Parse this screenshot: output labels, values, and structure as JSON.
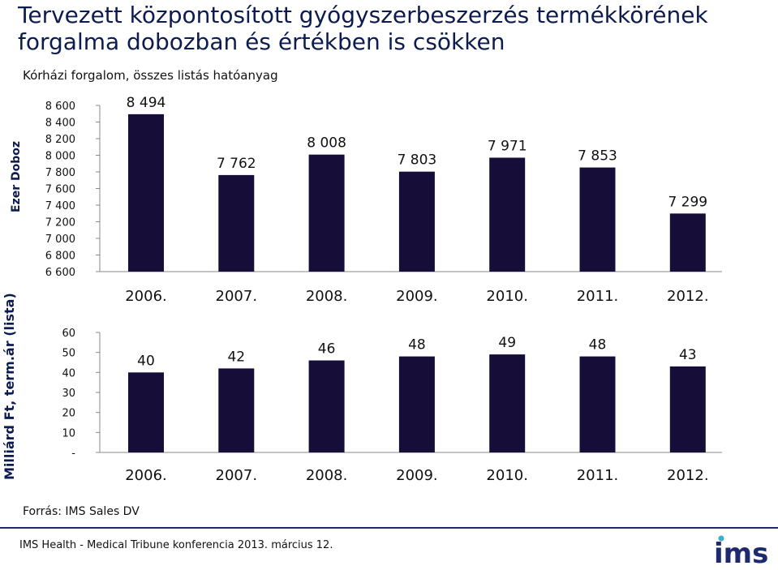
{
  "header": {
    "title": "Tervezett központosított gyógyszerbeszerzés termékkörének forgalma dobozban és értékben is csökken",
    "subtitle": "Kórházi forgalom, összes listás hatóanyag"
  },
  "colors": {
    "bar": "#160d38",
    "title": "#0d1c4f",
    "axis": "#888888",
    "accent": "#1e2a6e"
  },
  "chart_data": [
    {
      "type": "bar",
      "categories": [
        "2006.",
        "2007.",
        "2008.",
        "2009.",
        "2010.",
        "2011.",
        "2012."
      ],
      "values": [
        8494,
        7762,
        8008,
        7803,
        7971,
        7853,
        7299
      ],
      "value_labels": [
        "8 494",
        "7 762",
        "8 008",
        "7 803",
        "7 971",
        "7 853",
        "7 299"
      ],
      "ylabel": "Ezer Doboz",
      "ylim": [
        6600,
        8600
      ],
      "yticks": [
        8600,
        8400,
        8200,
        8000,
        7800,
        7600,
        7400,
        7200,
        7000,
        6800,
        6600
      ],
      "ytick_labels": [
        "8 600",
        "8 400",
        "8 200",
        "8 000",
        "7 800",
        "7 600",
        "7 400",
        "7 200",
        "7 000",
        "6 800",
        "6 600"
      ],
      "grid": false
    },
    {
      "type": "bar",
      "categories": [
        "2006.",
        "2007.",
        "2008.",
        "2009.",
        "2010.",
        "2011.",
        "2012."
      ],
      "values": [
        40,
        42,
        46,
        48,
        49,
        48,
        43
      ],
      "value_labels": [
        "40",
        "42",
        "46",
        "48",
        "49",
        "48",
        "43"
      ],
      "ylabel": "Milliárd Ft, term.ár (lista)",
      "ylim": [
        0,
        60
      ],
      "yticks": [
        60,
        50,
        40,
        30,
        20,
        10,
        0
      ],
      "ytick_labels": [
        "60",
        "50",
        "40",
        "30",
        "20",
        "10",
        "-"
      ],
      "grid": false
    }
  ],
  "source": "Forrás: IMS Sales DV",
  "footer": {
    "text": "IMS Health - Medical Tribune konferencia 2013. március 12.",
    "logo_text": "ims"
  }
}
